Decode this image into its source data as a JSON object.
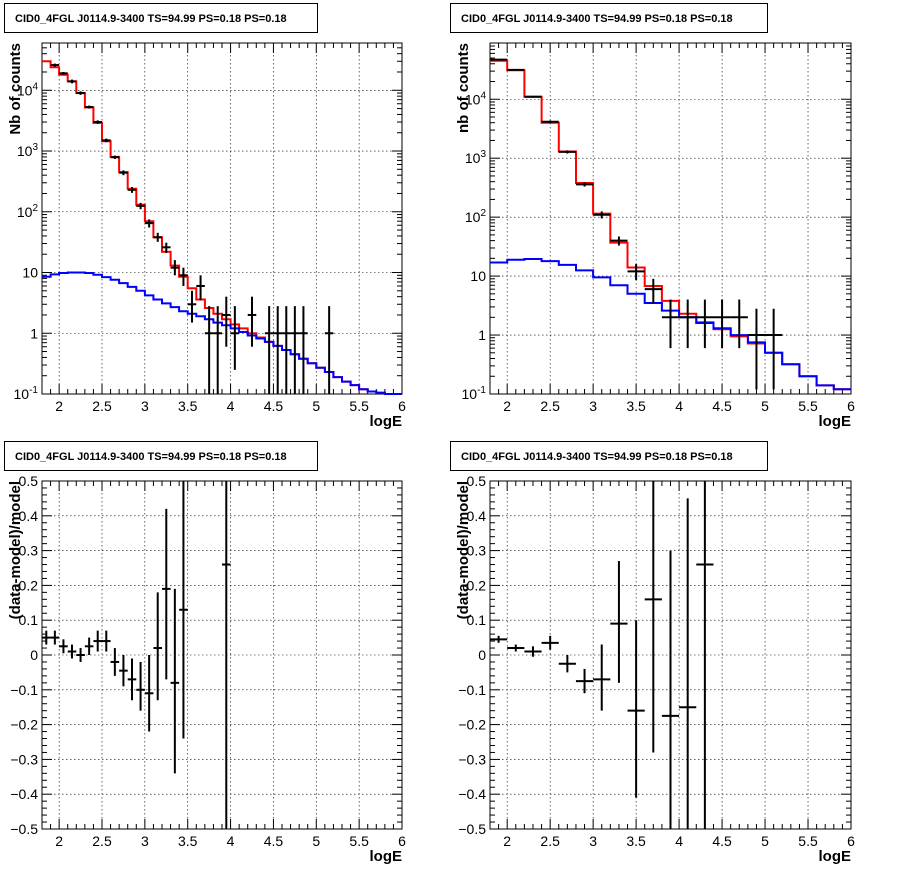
{
  "panels": [
    {
      "title": "CID0_4FGL J0114.9-3400 TS=94.99 PS=0.18 PS=0.18",
      "chart_data": {
        "type": "line",
        "scale_y": "log",
        "xlabel": "logE",
        "ylabel": "Nb of counts",
        "xlim": [
          1.8,
          6.0
        ],
        "ylim": [
          0.1,
          60000
        ],
        "grid": true,
        "x_tick_labels": [
          "2",
          "2.5",
          "3",
          "3.5",
          "4",
          "4.5",
          "5",
          "5.5",
          "6"
        ],
        "y_tick_labels": [
          "10^-1",
          "1",
          "10",
          "10^2",
          "10^3",
          "10^4"
        ],
        "bin_width": 0.1,
        "series": [
          {
            "color": "#ff0000",
            "style": "step",
            "x": [
              1.8,
              1.9,
              2.0,
              2.1,
              2.2,
              2.3,
              2.4,
              2.5,
              2.6,
              2.7,
              2.8,
              2.9,
              3.0,
              3.1,
              3.2,
              3.3,
              3.4,
              3.5,
              3.6,
              3.7,
              3.8,
              3.9,
              4.0,
              4.1,
              4.2,
              4.3,
              4.4,
              4.5,
              4.6,
              4.7,
              4.8,
              4.9,
              5.0,
              5.1,
              5.2,
              5.3,
              5.4,
              5.5,
              5.6,
              5.7,
              5.8,
              5.9
            ],
            "y": [
              30000,
              24000,
              18000,
              14000,
              9000,
              5200,
              2900,
              1450,
              800,
              450,
              240,
              130,
              70,
              38,
              22,
              13,
              8.5,
              5.5,
              3.6,
              2.6,
              2.1,
              1.7,
              1.4,
              1.2,
              1.0,
              0.85,
              0.72,
              0.62,
              0.53,
              0.45,
              0.38,
              0.32,
              0.27,
              0.23,
              0.19,
              0.16,
              0.14,
              0.12,
              0.11,
              0.105,
              0.1,
              0.1
            ]
          },
          {
            "color": "#0000ff",
            "style": "step",
            "x": [
              1.8,
              1.9,
              2.0,
              2.1,
              2.2,
              2.3,
              2.4,
              2.5,
              2.6,
              2.7,
              2.8,
              2.9,
              3.0,
              3.1,
              3.2,
              3.3,
              3.4,
              3.5,
              3.6,
              3.7,
              3.8,
              3.9,
              4.0,
              4.1,
              4.2,
              4.3,
              4.4,
              4.5,
              4.6,
              4.7,
              4.8,
              4.9,
              5.0,
              5.1,
              5.2,
              5.3,
              5.4,
              5.5,
              5.6,
              5.7,
              5.8,
              5.9
            ],
            "y": [
              8.5,
              9.3,
              9.8,
              10.0,
              10.0,
              9.8,
              9.2,
              8.4,
              7.6,
              6.7,
              5.8,
              5.0,
              4.2,
              3.6,
              3.1,
              2.7,
              2.3,
              2.1,
              1.9,
              1.7,
              1.5,
              1.35,
              1.2,
              1.05,
              0.92,
              0.82,
              0.72,
              0.62,
              0.53,
              0.45,
              0.38,
              0.32,
              0.27,
              0.23,
              0.19,
              0.16,
              0.14,
              0.12,
              0.11,
              0.105,
              0.1,
              0.1
            ]
          }
        ],
        "points": [
          {
            "x": 1.95,
            "y": 26000,
            "lo": 24500,
            "hi": 27500
          },
          {
            "x": 2.05,
            "y": 19000,
            "lo": 18000,
            "hi": 20000
          },
          {
            "x": 2.15,
            "y": 14000,
            "lo": 13000,
            "hi": 15000
          },
          {
            "x": 2.25,
            "y": 9000,
            "lo": 8400,
            "hi": 9600
          },
          {
            "x": 2.35,
            "y": 5300,
            "lo": 5000,
            "hi": 5600
          },
          {
            "x": 2.45,
            "y": 3000,
            "lo": 2800,
            "hi": 3200
          },
          {
            "x": 2.55,
            "y": 1500,
            "lo": 1400,
            "hi": 1600
          },
          {
            "x": 2.65,
            "y": 790,
            "lo": 740,
            "hi": 840
          },
          {
            "x": 2.75,
            "y": 440,
            "lo": 400,
            "hi": 480
          },
          {
            "x": 2.85,
            "y": 230,
            "lo": 205,
            "hi": 255
          },
          {
            "x": 2.95,
            "y": 125,
            "lo": 110,
            "hi": 140
          },
          {
            "x": 3.05,
            "y": 65,
            "lo": 55,
            "hi": 75
          },
          {
            "x": 3.15,
            "y": 38,
            "lo": 32,
            "hi": 45
          },
          {
            "x": 3.25,
            "y": 26,
            "lo": 21,
            "hi": 31
          },
          {
            "x": 3.35,
            "y": 12,
            "lo": 9,
            "hi": 16
          },
          {
            "x": 3.45,
            "y": 9,
            "lo": 6,
            "hi": 12
          },
          {
            "x": 3.55,
            "y": 3,
            "lo": 1.5,
            "hi": 5
          },
          {
            "x": 3.65,
            "y": 6,
            "lo": 3.5,
            "hi": 9
          },
          {
            "x": 3.75,
            "y": 1,
            "lo": 0.1,
            "hi": 2.8
          },
          {
            "x": 3.85,
            "y": 1,
            "lo": 0.1,
            "hi": 2.8
          },
          {
            "x": 3.95,
            "y": 2,
            "lo": 0.6,
            "hi": 4
          },
          {
            "x": 4.05,
            "y": 1,
            "lo": 0.25,
            "hi": 2.8
          },
          {
            "x": 4.25,
            "y": 2,
            "lo": 0.6,
            "hi": 4
          },
          {
            "x": 4.45,
            "y": 1,
            "lo": 0.1,
            "hi": 2.8
          },
          {
            "x": 4.55,
            "y": 1,
            "lo": 0.1,
            "hi": 2.8
          },
          {
            "x": 4.65,
            "y": 1,
            "lo": 0.1,
            "hi": 2.8
          },
          {
            "x": 4.75,
            "y": 1,
            "lo": 0.1,
            "hi": 2.8
          },
          {
            "x": 4.85,
            "y": 1,
            "lo": 0.1,
            "hi": 2.8
          },
          {
            "x": 5.15,
            "y": 1,
            "lo": 0.1,
            "hi": 2.8
          }
        ]
      }
    },
    {
      "title": "CID0_4FGL J0114.9-3400 TS=94.99 PS=0.18 PS=0.18",
      "chart_data": {
        "type": "line",
        "scale_y": "log",
        "xlabel": "logE",
        "ylabel": "nb of counts",
        "xlim": [
          1.8,
          6.0
        ],
        "ylim": [
          0.1,
          90000
        ],
        "grid": true,
        "x_tick_labels": [
          "2",
          "2.5",
          "3",
          "3.5",
          "4",
          "4.5",
          "5",
          "5.5",
          "6"
        ],
        "y_tick_labels": [
          "10^-1",
          "1",
          "10",
          "10^2",
          "10^3",
          "10^4"
        ],
        "bin_width": 0.2,
        "series": [
          {
            "color": "#ff0000",
            "style": "step",
            "x": [
              1.8,
              2.0,
              2.2,
              2.4,
              2.6,
              2.8,
              3.0,
              3.2,
              3.4,
              3.6,
              3.8,
              4.0,
              4.2,
              4.4,
              4.6,
              4.8,
              5.0,
              5.2,
              5.4,
              5.6,
              5.8
            ],
            "y": [
              45000,
              31000,
              11000,
              4000,
              1300,
              380,
              115,
              37,
              14,
              6.8,
              3.8,
              2.3,
              1.65,
              1.25,
              0.95,
              0.72,
              0.5,
              0.32,
              0.2,
              0.14,
              0.12
            ]
          },
          {
            "color": "#0000ff",
            "style": "step",
            "x": [
              1.8,
              2.0,
              2.2,
              2.4,
              2.6,
              2.8,
              3.0,
              3.2,
              3.4,
              3.6,
              3.8,
              4.0,
              4.2,
              4.4,
              4.6,
              4.8,
              5.0,
              5.2,
              5.4,
              5.6,
              5.8
            ],
            "y": [
              17,
              19,
              19.5,
              18,
              15.5,
              12.5,
              9.5,
              7,
              5,
              3.5,
              2.6,
              2.0,
              1.6,
              1.3,
              1.0,
              0.75,
              0.5,
              0.32,
              0.2,
              0.14,
              0.12
            ]
          }
        ],
        "points": [
          {
            "x": 1.9,
            "y": 47000,
            "lo": 46000,
            "hi": 48000
          },
          {
            "x": 2.1,
            "y": 31500,
            "lo": 30800,
            "hi": 32200
          },
          {
            "x": 2.3,
            "y": 11000,
            "lo": 10600,
            "hi": 11400
          },
          {
            "x": 2.5,
            "y": 4150,
            "lo": 3950,
            "hi": 4350
          },
          {
            "x": 2.7,
            "y": 1280,
            "lo": 1200,
            "hi": 1360
          },
          {
            "x": 2.9,
            "y": 360,
            "lo": 330,
            "hi": 390
          },
          {
            "x": 3.1,
            "y": 110,
            "lo": 95,
            "hi": 125
          },
          {
            "x": 3.3,
            "y": 40,
            "lo": 33,
            "hi": 47
          },
          {
            "x": 3.5,
            "y": 12,
            "lo": 8.5,
            "hi": 16
          },
          {
            "x": 3.7,
            "y": 6,
            "lo": 3.5,
            "hi": 9
          },
          {
            "x": 3.9,
            "y": 2,
            "lo": 0.6,
            "hi": 4
          },
          {
            "x": 4.1,
            "y": 2,
            "lo": 0.6,
            "hi": 4
          },
          {
            "x": 4.3,
            "y": 2,
            "lo": 0.6,
            "hi": 4
          },
          {
            "x": 4.5,
            "y": 2,
            "lo": 0.6,
            "hi": 4
          },
          {
            "x": 4.7,
            "y": 2,
            "lo": 0.6,
            "hi": 4
          },
          {
            "x": 4.9,
            "y": 1,
            "lo": 0.12,
            "hi": 2.8
          },
          {
            "x": 5.1,
            "y": 1,
            "lo": 0.12,
            "hi": 2.8
          }
        ]
      }
    },
    {
      "title": "CID0_4FGL J0114.9-3400 TS=94.99 PS=0.18 PS=0.18",
      "chart_data": {
        "type": "scatter",
        "scale_y": "linear",
        "xlabel": "logE",
        "ylabel": "(data-model)/model",
        "xlim": [
          1.8,
          6.0
        ],
        "ylim": [
          -0.5,
          0.5
        ],
        "grid": true,
        "x_tick_labels": [
          "2",
          "2.5",
          "3",
          "3.5",
          "4",
          "4.5",
          "5",
          "5.5",
          "6"
        ],
        "y_tick_labels": [
          "−0.5",
          "−0.4",
          "−0.3",
          "−0.2",
          "−0.1",
          "0",
          "0.1",
          "0.2",
          "0.3",
          "0.4",
          "0.5"
        ],
        "bin_width": 0.1,
        "points": [
          {
            "x": 1.85,
            "y": 0.05,
            "lo": 0.03,
            "hi": 0.07
          },
          {
            "x": 1.95,
            "y": 0.05,
            "lo": 0.03,
            "hi": 0.07
          },
          {
            "x": 2.05,
            "y": 0.025,
            "lo": 0.005,
            "hi": 0.045
          },
          {
            "x": 2.15,
            "y": 0.01,
            "lo": -0.01,
            "hi": 0.03
          },
          {
            "x": 2.25,
            "y": 0.0,
            "lo": -0.02,
            "hi": 0.02
          },
          {
            "x": 2.35,
            "y": 0.025,
            "lo": 0.0,
            "hi": 0.05
          },
          {
            "x": 2.45,
            "y": 0.04,
            "lo": 0.01,
            "hi": 0.07
          },
          {
            "x": 2.55,
            "y": 0.04,
            "lo": 0.01,
            "hi": 0.07
          },
          {
            "x": 2.65,
            "y": -0.02,
            "lo": -0.06,
            "hi": 0.02
          },
          {
            "x": 2.75,
            "y": -0.045,
            "lo": -0.09,
            "hi": 0.0
          },
          {
            "x": 2.85,
            "y": -0.07,
            "lo": -0.13,
            "hi": -0.01
          },
          {
            "x": 2.95,
            "y": -0.1,
            "lo": -0.16,
            "hi": -0.02
          },
          {
            "x": 3.05,
            "y": -0.11,
            "lo": -0.22,
            "hi": 0.0
          },
          {
            "x": 3.15,
            "y": 0.02,
            "lo": -0.13,
            "hi": 0.18
          },
          {
            "x": 3.25,
            "y": 0.19,
            "lo": -0.07,
            "hi": 0.42
          },
          {
            "x": 3.35,
            "y": -0.08,
            "lo": -0.34,
            "hi": 0.19
          },
          {
            "x": 3.45,
            "y": 0.13,
            "lo": -0.24,
            "hi": 0.5
          },
          {
            "x": 3.95,
            "y": 0.26,
            "lo": -0.5,
            "hi": 0.5
          }
        ]
      }
    },
    {
      "title": "CID0_4FGL J0114.9-3400 TS=94.99 PS=0.18 PS=0.18",
      "chart_data": {
        "type": "scatter",
        "scale_y": "linear",
        "xlabel": "logE",
        "ylabel": "(data-model)/model",
        "xlim": [
          1.8,
          6.0
        ],
        "ylim": [
          -0.5,
          0.5
        ],
        "grid": true,
        "x_tick_labels": [
          "2",
          "2.5",
          "3",
          "3.5",
          "4",
          "4.5",
          "5",
          "5.5",
          "6"
        ],
        "y_tick_labels": [
          "−0.5",
          "−0.4",
          "−0.3",
          "−0.2",
          "−0.1",
          "0",
          "0.1",
          "0.2",
          "0.3",
          "0.4",
          "0.5"
        ],
        "bin_width": 0.2,
        "points": [
          {
            "x": 1.9,
            "y": 0.045,
            "lo": 0.035,
            "hi": 0.055
          },
          {
            "x": 2.1,
            "y": 0.02,
            "lo": 0.01,
            "hi": 0.03
          },
          {
            "x": 2.3,
            "y": 0.01,
            "lo": -0.005,
            "hi": 0.025
          },
          {
            "x": 2.5,
            "y": 0.035,
            "lo": 0.015,
            "hi": 0.055
          },
          {
            "x": 2.7,
            "y": -0.025,
            "lo": -0.05,
            "hi": 0.0
          },
          {
            "x": 2.9,
            "y": -0.075,
            "lo": -0.11,
            "hi": -0.04
          },
          {
            "x": 3.1,
            "y": -0.07,
            "lo": -0.16,
            "hi": 0.03
          },
          {
            "x": 3.3,
            "y": 0.09,
            "lo": -0.08,
            "hi": 0.27
          },
          {
            "x": 3.5,
            "y": -0.16,
            "lo": -0.41,
            "hi": 0.1
          },
          {
            "x": 3.7,
            "y": 0.16,
            "lo": -0.28,
            "hi": 0.5
          },
          {
            "x": 3.9,
            "y": -0.175,
            "lo": -0.5,
            "hi": 0.3
          },
          {
            "x": 4.1,
            "y": -0.15,
            "lo": -0.5,
            "hi": 0.45
          },
          {
            "x": 4.3,
            "y": 0.26,
            "lo": -0.5,
            "hi": 0.5
          }
        ]
      }
    }
  ]
}
